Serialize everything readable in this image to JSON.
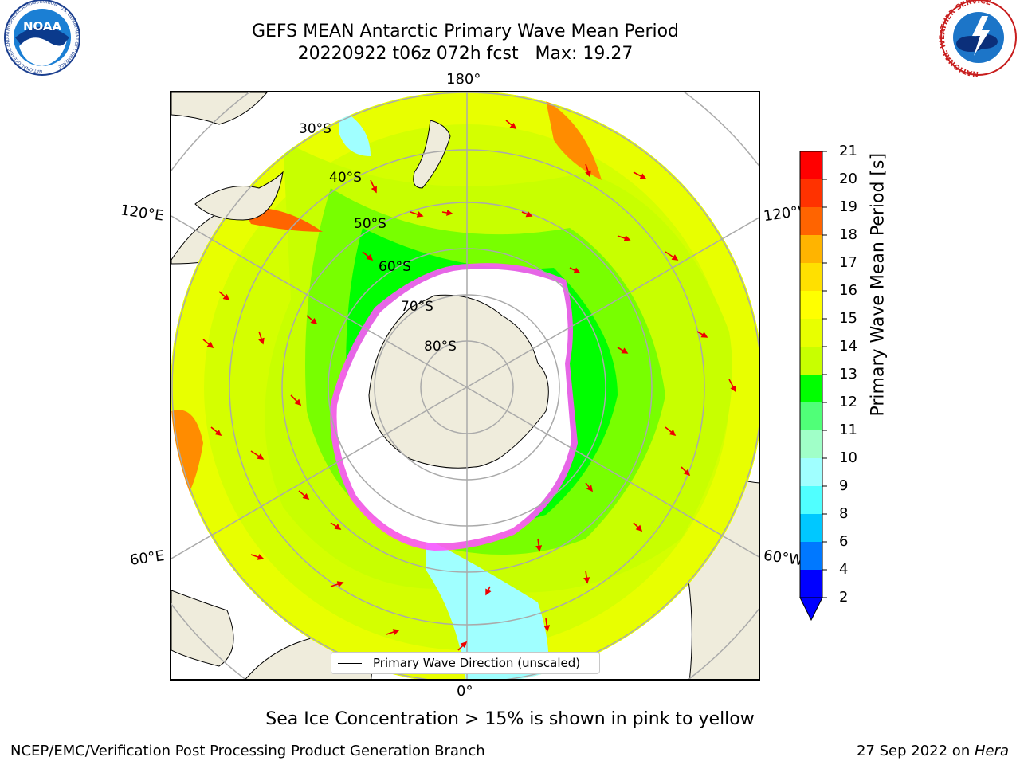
{
  "title": {
    "line1": "GEFS MEAN Antarctic Primary Wave Mean Period",
    "line2": "20220922 t06z 072h fcst   Max: 19.27"
  },
  "logos": {
    "left": {
      "name": "noaa-logo",
      "text": "NOAA",
      "ring_text": "NATIONAL OCEANIC AND ATMOSPHERIC ADMINISTRATION · U.S. DEPARTMENT OF COMMERCE"
    },
    "right": {
      "name": "nws-logo",
      "ring_text": "NATIONAL WEATHER SERVICE"
    }
  },
  "map": {
    "projection": "south-polar-stereographic",
    "lon_labels": {
      "top": "180°",
      "bottom": "0°",
      "upper_left": "120°E",
      "upper_right": "120°W",
      "lower_left": "60°E",
      "lower_right": "60°W"
    },
    "lat_labels": [
      "30°S",
      "40°S",
      "50°S",
      "60°S",
      "70°S",
      "80°S"
    ],
    "legend": "Primary Wave Direction (unscaled)"
  },
  "colorbar": {
    "label": "Primary Wave Mean Period [s]",
    "ticks": [
      "21",
      "20",
      "19",
      "18",
      "17",
      "16",
      "15",
      "14",
      "13",
      "12",
      "11",
      "10",
      "9",
      "8",
      "6",
      "4",
      "2"
    ],
    "colors": [
      "#ff0000",
      "#ff3200",
      "#ff6400",
      "#ff8c00",
      "#ffb400",
      "#ffe000",
      "#ffff00",
      "#e8ff00",
      "#c8ff00",
      "#78ff00",
      "#00ff00",
      "#50ff78",
      "#a0ffc8",
      "#a0ffff",
      "#50ffff",
      "#00ffff",
      "#00c8ff",
      "#0078ff",
      "#0000ff"
    ],
    "extend": "min"
  },
  "caption": "Sea Ice Concentration > 15% is shown in pink to yellow",
  "credit_left": "NCEP/EMC/Verification Post Processing Product Generation Branch",
  "credit_right_date": "27 Sep 2022 on ",
  "credit_right_host": "Hera"
}
